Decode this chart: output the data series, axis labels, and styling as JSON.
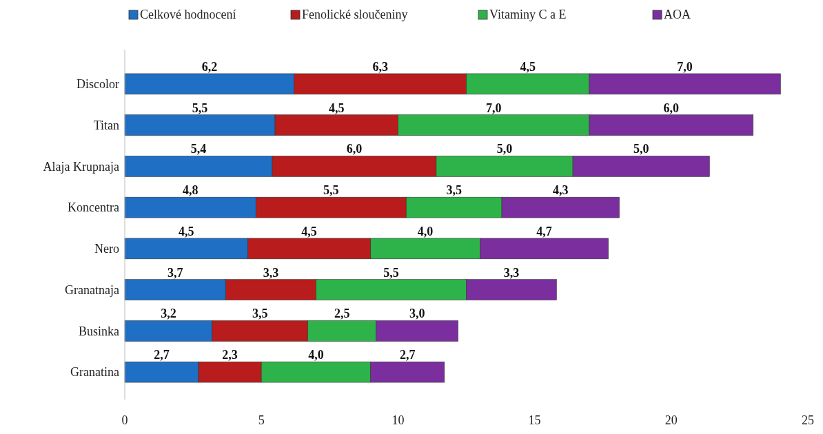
{
  "chart_data": {
    "type": "bar",
    "orientation": "horizontal",
    "stacked": true,
    "legend": "top",
    "grid": false,
    "categories": [
      "Discolor",
      "Titan",
      "Alaja Krupnaja",
      "Koncentra",
      "Nero",
      "Granatnaja",
      "Businka",
      "Granatina"
    ],
    "xlim": [
      0,
      25
    ],
    "xticks": [
      0,
      5,
      10,
      15,
      20,
      25
    ],
    "series": [
      {
        "name": "Celkové hodnocení",
        "color": "#1f6fc5",
        "values": [
          6.2,
          5.5,
          5.4,
          4.8,
          4.5,
          3.7,
          3.2,
          2.7
        ],
        "value_labels": [
          "6,2",
          "5,5",
          "5,4",
          "4,8",
          "4,5",
          "3,7",
          "3,2",
          "2,7"
        ]
      },
      {
        "name": "Fenolické sloučeniny",
        "color": "#b81c1c",
        "values": [
          6.3,
          4.5,
          6.0,
          5.5,
          4.5,
          3.3,
          3.5,
          2.3
        ],
        "value_labels": [
          "6,3",
          "4,5",
          "6,0",
          "5,5",
          "4,5",
          "3,3",
          "3,5",
          "2,3"
        ]
      },
      {
        "name": "Vitaminy C a E",
        "color": "#2eb34a",
        "values": [
          4.5,
          7.0,
          5.0,
          3.5,
          4.0,
          5.5,
          2.5,
          4.0
        ],
        "value_labels": [
          "4,5",
          "7,0",
          "5,0",
          "3,5",
          "4,0",
          "5,5",
          "2,5",
          "4,0"
        ]
      },
      {
        "name": "AOA",
        "color": "#7b2f9e",
        "values": [
          7.0,
          6.0,
          5.0,
          4.3,
          4.7,
          3.3,
          3.0,
          2.7
        ],
        "value_labels": [
          "7,0",
          "6,0",
          "5,0",
          "4,3",
          "4,7",
          "3,3",
          "3,0",
          "2,7"
        ]
      }
    ]
  }
}
